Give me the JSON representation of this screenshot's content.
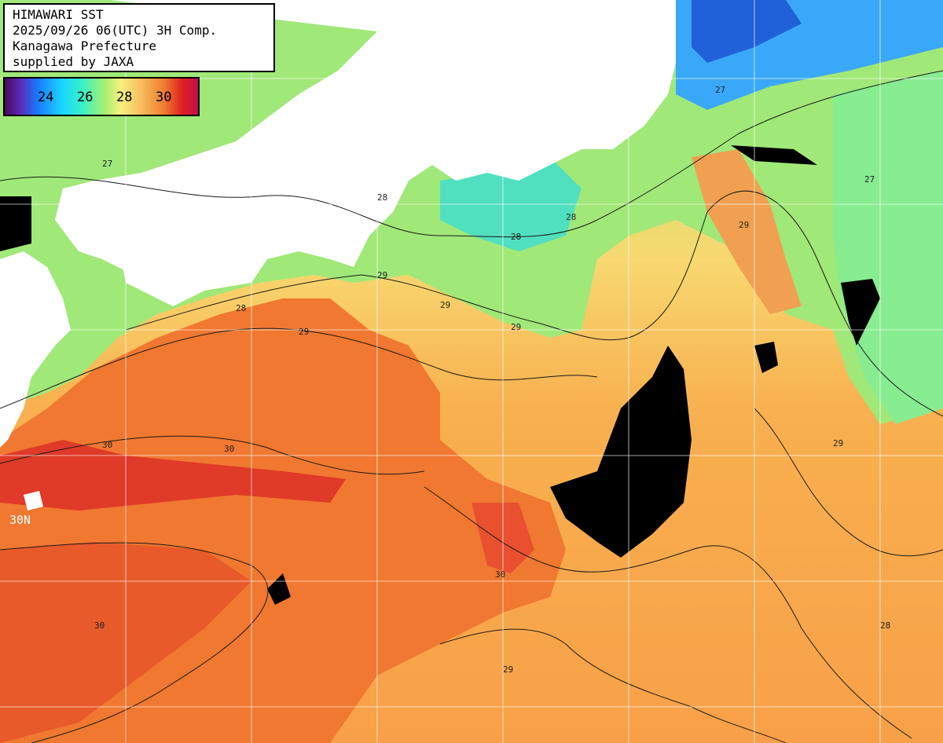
{
  "title": {
    "line1": "HIMAWARI SST",
    "line2": "2025/09/26 06(UTC) 3H Comp.",
    "line3": "Kanagawa Prefecture",
    "line4": "supplied by JAXA"
  },
  "legend": {
    "labels": [
      "24",
      "26",
      "28",
      "30"
    ],
    "colors": {
      "cold": "#4a0a5a",
      "c24": "#1a78ff",
      "c26": "#1ad8ff",
      "c27": "#a8f070",
      "c28": "#f8f080",
      "c29": "#f8c060",
      "c30": "#e02020",
      "warm": "#c0104a",
      "cloud": "#000000",
      "land": "#ffffff"
    }
  },
  "contour_labels": [
    "27",
    "28",
    "29",
    "30",
    "27",
    "28",
    "29",
    "29",
    "28",
    "27",
    "29",
    "29",
    "30",
    "30",
    "29",
    "28",
    "28",
    "29",
    "30"
  ],
  "edge_label": "30N"
}
